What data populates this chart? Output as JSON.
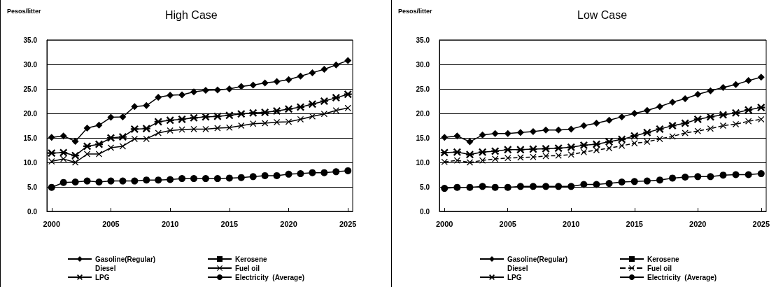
{
  "chart_data": [
    {
      "type": "line",
      "title": "High Case",
      "ylabel": "Pesos/litter",
      "x": [
        2000,
        2001,
        2002,
        2003,
        2004,
        2005,
        2006,
        2007,
        2008,
        2009,
        2010,
        2011,
        2012,
        2013,
        2014,
        2015,
        2016,
        2017,
        2018,
        2019,
        2020,
        2021,
        2022,
        2023,
        2024,
        2025
      ],
      "xlim": [
        1999.6,
        2025.4
      ],
      "xticks": [
        2000,
        2005,
        2010,
        2015,
        2020,
        2025
      ],
      "ylim": [
        0,
        35
      ],
      "yticks": [
        {
          "value": 0,
          "label": "0.0"
        },
        {
          "value": 5,
          "label": "5.0"
        },
        {
          "value": 10,
          "label": "10.0"
        },
        {
          "value": 15,
          "label": "15.0"
        },
        {
          "value": 20,
          "label": "20.0"
        },
        {
          "value": 25,
          "label": "25.0"
        },
        {
          "value": 30,
          "label": "30.0"
        },
        {
          "value": 35,
          "label": "35.0"
        }
      ],
      "grid": "y",
      "legend": "bottom",
      "series": [
        {
          "name": "Gasoline(Regular)",
          "color": "#000000",
          "marker": "diamond",
          "values": [
            15.1,
            15.4,
            14.3,
            17.0,
            17.6,
            19.2,
            19.3,
            21.4,
            21.6,
            23.3,
            23.7,
            23.8,
            24.4,
            24.7,
            24.8,
            25.0,
            25.5,
            25.8,
            26.2,
            26.5,
            26.9,
            27.6,
            28.3,
            29.0,
            29.9,
            30.8
          ]
        },
        {
          "name": "Kerosene",
          "color": "#000000",
          "marker": "square",
          "values": [
            null,
            null,
            null,
            null,
            null,
            null,
            null,
            null,
            null,
            null,
            null,
            null,
            null,
            null,
            null,
            null,
            null,
            null,
            null,
            null,
            null,
            null,
            null,
            null,
            null,
            null
          ]
        },
        {
          "name": "Diesel",
          "marker": "none",
          "values": [
            null,
            null,
            null,
            null,
            null,
            null,
            null,
            null,
            null,
            null,
            null,
            null,
            null,
            null,
            null,
            null,
            null,
            null,
            null,
            null,
            null,
            null,
            null,
            null,
            null,
            null
          ]
        },
        {
          "name": "Fuel oil",
          "color": "#000000",
          "marker": "cross",
          "line_style": "solid",
          "values": [
            10.2,
            10.7,
            10.0,
            11.7,
            11.7,
            13.0,
            13.3,
            14.8,
            14.8,
            16.0,
            16.5,
            16.7,
            16.8,
            16.8,
            17.0,
            17.1,
            17.5,
            17.9,
            18.0,
            18.2,
            18.3,
            18.8,
            19.4,
            19.9,
            20.6,
            21.1
          ]
        },
        {
          "name": "LPG",
          "color": "#000000",
          "marker": "star",
          "values": [
            11.9,
            12.0,
            11.4,
            13.3,
            13.7,
            15.0,
            15.2,
            16.8,
            16.9,
            18.3,
            18.6,
            18.8,
            19.1,
            19.3,
            19.4,
            19.6,
            19.9,
            20.1,
            20.2,
            20.5,
            20.9,
            21.3,
            21.9,
            22.5,
            23.2,
            23.9
          ]
        },
        {
          "name": "Electricity  (Average)",
          "color": "#000000",
          "marker": "circle",
          "values": [
            4.9,
            5.9,
            6.0,
            6.2,
            6.0,
            6.2,
            6.2,
            6.2,
            6.4,
            6.4,
            6.5,
            6.7,
            6.7,
            6.7,
            6.7,
            6.8,
            6.9,
            7.1,
            7.3,
            7.3,
            7.6,
            7.7,
            7.9,
            7.9,
            8.1,
            8.3
          ]
        }
      ]
    },
    {
      "type": "line",
      "title": "Low Case",
      "ylabel": "Pesos/litter",
      "x": [
        2000,
        2001,
        2002,
        2003,
        2004,
        2005,
        2006,
        2007,
        2008,
        2009,
        2010,
        2011,
        2012,
        2013,
        2014,
        2015,
        2016,
        2017,
        2018,
        2019,
        2020,
        2021,
        2022,
        2023,
        2024,
        2025
      ],
      "xlim": [
        1999.6,
        2025.4
      ],
      "xticks": [
        2000,
        2005,
        2010,
        2015,
        2020,
        2025
      ],
      "ylim": [
        0,
        35
      ],
      "yticks": [
        {
          "value": 0,
          "label": "0.0"
        },
        {
          "value": 5,
          "label": "5.0"
        },
        {
          "value": 10,
          "label": "10.0"
        },
        {
          "value": 15,
          "label": "15.0"
        },
        {
          "value": 20,
          "label": "20.0"
        },
        {
          "value": 25,
          "label": "25.0"
        },
        {
          "value": 30,
          "label": "30.0"
        },
        {
          "value": 35,
          "label": "35.0"
        }
      ],
      "grid": "y",
      "legend": "bottom",
      "series": [
        {
          "name": "Gasoline(Regular)",
          "color": "#000000",
          "marker": "diamond",
          "values": [
            15.1,
            15.4,
            14.2,
            15.6,
            15.9,
            15.9,
            16.1,
            16.3,
            16.6,
            16.6,
            16.8,
            17.5,
            18.0,
            18.6,
            19.3,
            20.0,
            20.6,
            21.4,
            22.3,
            23.0,
            23.9,
            24.6,
            25.3,
            25.9,
            26.7,
            27.4
          ]
        },
        {
          "name": "Kerosene",
          "color": "#000000",
          "marker": "square",
          "values": [
            null,
            null,
            null,
            null,
            null,
            null,
            null,
            null,
            null,
            null,
            null,
            null,
            null,
            null,
            null,
            null,
            null,
            null,
            null,
            null,
            null,
            null,
            null,
            null,
            null,
            null
          ]
        },
        {
          "name": "Diesel",
          "marker": "none",
          "values": [
            null,
            null,
            null,
            null,
            null,
            null,
            null,
            null,
            null,
            null,
            null,
            null,
            null,
            null,
            null,
            null,
            null,
            null,
            null,
            null,
            null,
            null,
            null,
            null,
            null,
            null
          ]
        },
        {
          "name": "Fuel oil",
          "color": "#000000",
          "marker": "cross",
          "line_style": "dashed",
          "values": [
            10.1,
            10.4,
            10.0,
            10.4,
            10.7,
            10.9,
            11.0,
            11.1,
            11.3,
            11.4,
            11.6,
            12.1,
            12.5,
            12.9,
            13.4,
            13.9,
            14.2,
            14.8,
            15.3,
            16.0,
            16.4,
            16.9,
            17.5,
            17.8,
            18.4,
            18.8
          ]
        },
        {
          "name": "LPG",
          "color": "#000000",
          "marker": "star",
          "values": [
            12.0,
            12.1,
            11.6,
            12.1,
            12.3,
            12.6,
            12.6,
            12.7,
            12.8,
            12.9,
            13.1,
            13.5,
            13.7,
            14.2,
            14.7,
            15.4,
            16.1,
            16.8,
            17.5,
            18.0,
            18.8,
            19.3,
            19.7,
            20.1,
            20.7,
            21.2
          ]
        },
        {
          "name": "Electricity  (Average)",
          "color": "#000000",
          "marker": "circle",
          "values": [
            4.7,
            4.9,
            4.9,
            5.1,
            4.9,
            4.9,
            5.1,
            5.1,
            5.1,
            5.1,
            5.1,
            5.5,
            5.5,
            5.7,
            6.0,
            6.1,
            6.2,
            6.4,
            6.8,
            7.0,
            7.1,
            7.1,
            7.4,
            7.5,
            7.5,
            7.7
          ]
        }
      ]
    }
  ]
}
